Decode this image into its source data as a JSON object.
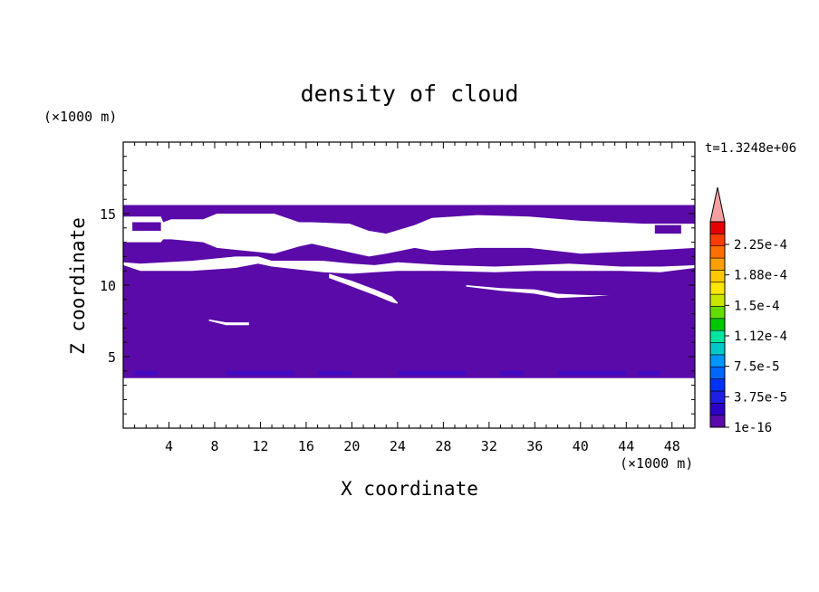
{
  "chart_data": {
    "type": "heatmap",
    "title": "density of cloud",
    "xlabel": "X coordinate",
    "ylabel": "Z coordinate",
    "x_unit": "(×1000 m)",
    "y_unit": "(×1000 m)",
    "time_label": "t=1.3248e+06",
    "xlim": [
      0,
      50
    ],
    "ylim": [
      0,
      20
    ],
    "x_ticks": [
      4,
      8,
      12,
      16,
      20,
      24,
      28,
      32,
      36,
      40,
      44,
      48
    ],
    "y_ticks": [
      5,
      10,
      15
    ],
    "fill_color": "#5a0aa8",
    "dark_color": "#3c0ac8",
    "cloud_layer": {
      "z_bottom": 3.5,
      "z_top": 15.6
    },
    "gaps": [
      {
        "x": [
          0.0,
          3.3,
          3.5,
          4.2,
          7.0,
          8.2,
          13.2,
          15.4,
          16.5,
          19.8,
          21.5,
          23.0,
          25.5,
          27.0,
          31.0,
          35.5,
          40.0,
          45.5,
          50.0
        ],
        "z": [
          14.8,
          14.8,
          14.4,
          14.6,
          14.6,
          15.0,
          15.0,
          14.4,
          14.4,
          14.3,
          13.8,
          13.6,
          14.2,
          14.7,
          14.9,
          14.8,
          14.5,
          14.3,
          14.3
        ],
        "zb": [
          13.0,
          13.0,
          13.2,
          13.2,
          13.0,
          12.6,
          12.2,
          12.7,
          12.9,
          12.3,
          12.0,
          12.2,
          12.6,
          12.4,
          12.6,
          12.6,
          12.2,
          12.4,
          12.6
        ]
      },
      {
        "x": [
          0.0,
          1.5,
          6.0,
          9.8,
          11.8,
          13.0,
          17.5,
          20.0,
          22.0,
          24.0,
          28.0,
          32.5,
          36.0,
          39.0,
          43.5,
          47.0,
          50.0
        ],
        "z": [
          11.6,
          11.5,
          11.7,
          12.0,
          12.0,
          11.7,
          11.7,
          11.5,
          11.4,
          11.6,
          11.4,
          11.3,
          11.4,
          11.5,
          11.3,
          11.3,
          11.4
        ],
        "zb": [
          11.4,
          11.0,
          11.0,
          11.2,
          11.5,
          11.3,
          10.9,
          10.8,
          10.9,
          11.0,
          11.0,
          10.9,
          11.0,
          11.0,
          11.0,
          10.9,
          11.2
        ]
      },
      {
        "x": [
          18.0,
          20.0,
          22.0,
          23.5,
          24.0
        ],
        "z": [
          10.8,
          10.3,
          9.7,
          9.2,
          8.8
        ],
        "zb": [
          10.5,
          9.9,
          9.3,
          8.8,
          8.7
        ]
      },
      {
        "x": [
          30.0,
          33.0,
          36.0,
          38.0,
          41.0,
          42.5
        ],
        "z": [
          10.0,
          9.8,
          9.7,
          9.4,
          9.3,
          9.3
        ],
        "zb": [
          9.9,
          9.6,
          9.4,
          9.1,
          9.2,
          9.3
        ]
      },
      {
        "x": [
          7.5,
          9.0,
          11.0
        ],
        "z": [
          7.6,
          7.4,
          7.4
        ],
        "zb": [
          7.5,
          7.2,
          7.2
        ]
      }
    ],
    "islands": [
      {
        "x": [
          0.8,
          3.3
        ],
        "z": [
          14.4,
          13.8
        ]
      },
      {
        "x": [
          31.5,
          33.4
        ],
        "z": [
          15.6,
          15.3
        ]
      },
      {
        "x": [
          46.5,
          48.8
        ],
        "z": [
          14.2,
          13.6
        ]
      },
      {
        "x": [
          49.2,
          50.0
        ],
        "z": [
          15.6,
          15.3
        ]
      }
    ],
    "colorbar": {
      "labels": [
        "2.25e-4",
        "1.88e-4",
        "1.5e-4",
        "1.12e-4",
        "7.5e-5",
        "3.75e-5",
        "1e-16"
      ],
      "colors": [
        "#5a0aa8",
        "#2d00c8",
        "#1e1ee6",
        "#0032ff",
        "#0064ff",
        "#0096ff",
        "#00c8c8",
        "#00e6a0",
        "#00c800",
        "#64dc00",
        "#c8e600",
        "#ffe600",
        "#ffc800",
        "#ffa000",
        "#ff6e00",
        "#ff3c00",
        "#e60000"
      ],
      "over_color": "#f5a0a0"
    }
  }
}
